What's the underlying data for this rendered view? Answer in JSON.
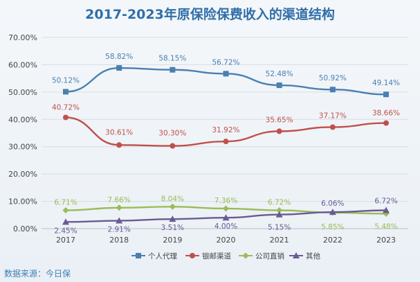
{
  "chart_data": {
    "type": "line",
    "title": "2017-2023年原保险保费收入的渠道结构",
    "categories": [
      "2017",
      "2018",
      "2019",
      "2020",
      "2021",
      "2022",
      "2023"
    ],
    "y_ticks": [
      "0.00%",
      "10.00%",
      "20.00%",
      "30.00%",
      "40.00%",
      "50.00%",
      "60.00%",
      "70.00%"
    ],
    "ylim": [
      0,
      70
    ],
    "grid": true,
    "legend_position": "bottom",
    "series": [
      {
        "name": "个人代理",
        "color": "#4a7fb0",
        "marker": "square",
        "values": [
          50.12,
          58.82,
          58.15,
          56.72,
          52.48,
          50.92,
          49.14
        ],
        "labels": [
          "50.12%",
          "58.82%",
          "58.15%",
          "56.72%",
          "52.48%",
          "50.92%",
          "49.14%"
        ]
      },
      {
        "name": "银邮渠道",
        "color": "#c0504d",
        "marker": "circle",
        "values": [
          40.72,
          30.61,
          30.3,
          31.92,
          35.65,
          37.17,
          38.66
        ],
        "labels": [
          "40.72%",
          "30.61%",
          "30.30%",
          "31.92%",
          "35.65%",
          "37.17%",
          "38.66%"
        ]
      },
      {
        "name": "公司直销",
        "color": "#9bbb59",
        "marker": "diamond",
        "values": [
          6.71,
          7.66,
          8.04,
          7.36,
          6.72,
          5.85,
          5.48
        ],
        "labels": [
          "6.71%",
          "7.66%",
          "8.04%",
          "7.36%",
          "6.72%",
          "5.85%",
          "5.48%"
        ]
      },
      {
        "name": "其他",
        "color": "#6b5a93",
        "marker": "triangle",
        "values": [
          2.45,
          2.91,
          3.51,
          4.0,
          5.15,
          6.06,
          6.72
        ],
        "labels": [
          "2.45%",
          "2.91%",
          "3.51%",
          "4.00%",
          "5.15%",
          "6.06%",
          "6.72%"
        ]
      }
    ]
  },
  "source": "数据来源：今日保"
}
